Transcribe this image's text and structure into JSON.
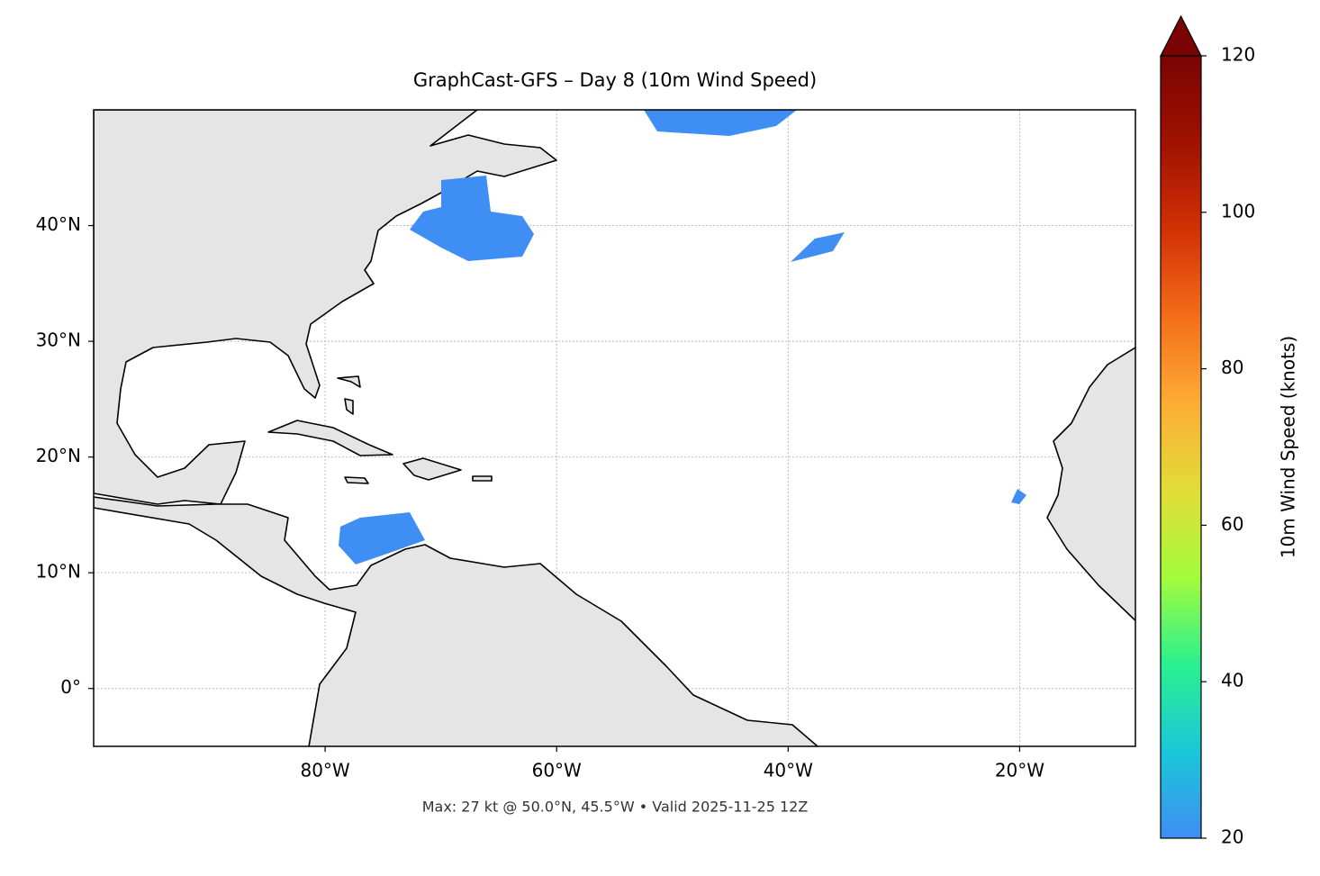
{
  "chart_data": {
    "type": "map",
    "title": "GraphCast-GFS – Day 8 (10m Wind Speed)",
    "footnote": "Max: 27 kt @ 50.0°N, 45.5°W • Valid 2025-11-25 12Z",
    "xlim": [
      -100,
      -10
    ],
    "ylim": [
      -5,
      50
    ],
    "xticks": [
      {
        "value": -80,
        "label": "80°W"
      },
      {
        "value": -60,
        "label": "60°W"
      },
      {
        "value": -40,
        "label": "40°W"
      },
      {
        "value": -20,
        "label": "20°W"
      }
    ],
    "yticks": [
      {
        "value": 0,
        "label": "0°"
      },
      {
        "value": 10,
        "label": "10°N"
      },
      {
        "value": 20,
        "label": "20°N"
      },
      {
        "value": 30,
        "label": "30°N"
      },
      {
        "value": 40,
        "label": "40°N"
      }
    ],
    "grid": true,
    "colorbar": {
      "label": "10m Wind Speed (knots)",
      "lim": [
        20,
        120
      ],
      "ticks": [
        20,
        40,
        60,
        80,
        100,
        120
      ],
      "extend": "max",
      "colors": [
        "#3f8ef3",
        "#1ac7d9",
        "#2af08f",
        "#a4fc3c",
        "#e1dd37",
        "#fdad35",
        "#f46d19",
        "#d23105",
        "#a01101",
        "#7a0403"
      ]
    }
  }
}
